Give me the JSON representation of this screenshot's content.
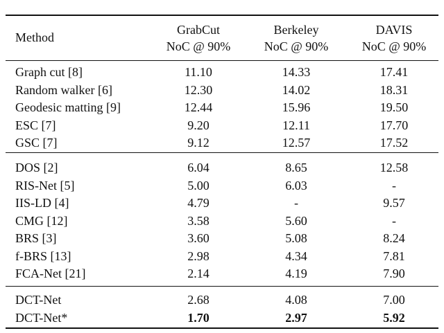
{
  "table": {
    "header": {
      "method": "Method",
      "columns": [
        {
          "name": "GrabCut",
          "metric": "NoC @ 90%"
        },
        {
          "name": "Berkeley",
          "metric": "NoC @ 90%"
        },
        {
          "name": "DAVIS",
          "metric": "NoC @ 90%"
        }
      ]
    },
    "groups": [
      [
        [
          "Graph cut [8]",
          "11.10",
          "14.33",
          "17.41"
        ],
        [
          "Random walker [6]",
          "12.30",
          "14.02",
          "18.31"
        ],
        [
          "Geodesic matting [9]",
          "12.44",
          "15.96",
          "19.50"
        ],
        [
          "ESC [7]",
          "9.20",
          "12.11",
          "17.70"
        ],
        [
          "GSC [7]",
          "9.12",
          "12.57",
          "17.52"
        ]
      ],
      [
        [
          "DOS [2]",
          "6.04",
          "8.65",
          "12.58"
        ],
        [
          "RIS-Net [5]",
          "5.00",
          "6.03",
          "-"
        ],
        [
          "IIS-LD [4]",
          "4.79",
          "-",
          "9.57"
        ],
        [
          "CMG [12]",
          "3.58",
          "5.60",
          "-"
        ],
        [
          "BRS [3]",
          "3.60",
          "5.08",
          "8.24"
        ],
        [
          "f-BRS [13]",
          "2.98",
          "4.34",
          "7.81"
        ],
        [
          "FCA-Net [21]",
          "2.14",
          "4.19",
          "7.90"
        ]
      ],
      [
        [
          "DCT-Net",
          "2.68",
          "4.08",
          "7.00"
        ],
        [
          "DCT-Net*",
          "1.70",
          "2.97",
          "5.92"
        ]
      ]
    ]
  }
}
